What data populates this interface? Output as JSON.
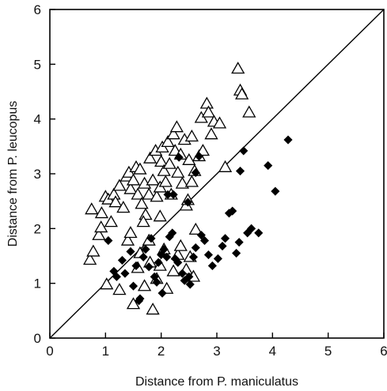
{
  "chart_data": {
    "type": "scatter",
    "title": "",
    "xlabel": "Distance from P. maniculatus",
    "ylabel": "Distance from P. leucopus",
    "xlim": [
      0,
      6
    ],
    "ylim": [
      0,
      6
    ],
    "xticks": [
      "0",
      "1",
      "2",
      "3",
      "4",
      "5",
      "6"
    ],
    "yticks": [
      "0",
      "1",
      "2",
      "3",
      "4",
      "5",
      "6"
    ],
    "grid": false,
    "reference_line": {
      "from": [
        0,
        0
      ],
      "to": [
        6,
        6
      ]
    },
    "series": [
      {
        "marker": "open-triangle",
        "color": "#000000",
        "points": [
          [
            0.72,
            1.43
          ],
          [
            0.78,
            1.58
          ],
          [
            0.75,
            2.35
          ],
          [
            0.88,
            1.88
          ],
          [
            0.92,
            2.02
          ],
          [
            0.93,
            2.28
          ],
          [
            1.0,
            2.58
          ],
          [
            1.05,
            2.53
          ],
          [
            1.1,
            2.12
          ],
          [
            1.15,
            2.62
          ],
          [
            1.25,
            2.78
          ],
          [
            1.18,
            2.48
          ],
          [
            1.32,
            2.38
          ],
          [
            1.38,
            2.95
          ],
          [
            1.42,
            3.02
          ],
          [
            1.45,
            2.72
          ],
          [
            1.5,
            2.88
          ],
          [
            1.55,
            3.12
          ],
          [
            1.62,
            3.08
          ],
          [
            1.58,
            2.62
          ],
          [
            1.65,
            2.45
          ],
          [
            1.7,
            2.82
          ],
          [
            1.72,
            2.25
          ],
          [
            1.78,
            2.62
          ],
          [
            1.8,
            3.28
          ],
          [
            1.85,
            2.88
          ],
          [
            1.9,
            3.42
          ],
          [
            1.92,
            2.58
          ],
          [
            1.98,
            2.75
          ],
          [
            2.0,
            3.22
          ],
          [
            2.02,
            3.48
          ],
          [
            2.05,
            3.05
          ],
          [
            2.08,
            2.85
          ],
          [
            2.12,
            3.58
          ],
          [
            2.15,
            3.18
          ],
          [
            2.18,
            2.62
          ],
          [
            2.22,
            3.72
          ],
          [
            2.25,
            3.42
          ],
          [
            2.28,
            3.85
          ],
          [
            2.3,
            3.02
          ],
          [
            2.35,
            3.35
          ],
          [
            2.38,
            2.82
          ],
          [
            2.42,
            3.62
          ],
          [
            2.45,
            2.42
          ],
          [
            2.5,
            3.25
          ],
          [
            2.55,
            3.68
          ],
          [
            2.6,
            3.05
          ],
          [
            2.68,
            3.32
          ],
          [
            2.72,
            4.02
          ],
          [
            2.75,
            3.42
          ],
          [
            2.82,
            4.28
          ],
          [
            2.85,
            4.12
          ],
          [
            2.9,
            3.72
          ],
          [
            2.95,
            3.95
          ],
          [
            3.05,
            3.92
          ],
          [
            3.15,
            3.12
          ],
          [
            3.38,
            4.92
          ],
          [
            3.42,
            4.52
          ],
          [
            3.45,
            4.45
          ],
          [
            3.58,
            4.12
          ],
          [
            1.02,
            0.98
          ],
          [
            1.25,
            0.88
          ],
          [
            1.4,
            1.78
          ],
          [
            1.45,
            1.92
          ],
          [
            1.5,
            0.62
          ],
          [
            1.58,
            1.28
          ],
          [
            1.62,
            1.55
          ],
          [
            1.7,
            0.95
          ],
          [
            1.78,
            1.78
          ],
          [
            1.8,
            1.38
          ],
          [
            1.85,
            0.52
          ],
          [
            1.92,
            1.08
          ],
          [
            1.98,
            1.32
          ],
          [
            2.05,
            1.62
          ],
          [
            2.1,
            0.9
          ],
          [
            2.22,
            1.22
          ],
          [
            2.3,
            1.52
          ],
          [
            2.35,
            1.68
          ],
          [
            2.45,
            1.25
          ],
          [
            2.52,
            1.48
          ],
          [
            2.58,
            1.12
          ],
          [
            2.62,
            1.98
          ],
          [
            1.68,
            2.12
          ],
          [
            1.98,
            2.22
          ],
          [
            2.48,
            2.52
          ],
          [
            2.55,
            2.85
          ]
        ]
      },
      {
        "marker": "filled-diamond",
        "color": "#000000",
        "points": [
          [
            1.05,
            1.78
          ],
          [
            1.15,
            1.22
          ],
          [
            1.2,
            1.12
          ],
          [
            1.3,
            1.42
          ],
          [
            1.35,
            1.18
          ],
          [
            1.45,
            1.58
          ],
          [
            1.5,
            0.95
          ],
          [
            1.55,
            1.32
          ],
          [
            1.6,
            0.68
          ],
          [
            1.62,
            0.72
          ],
          [
            1.68,
            1.48
          ],
          [
            1.72,
            1.62
          ],
          [
            1.78,
            1.3
          ],
          [
            1.82,
            1.82
          ],
          [
            1.88,
            1.12
          ],
          [
            1.92,
            1.02
          ],
          [
            1.95,
            1.38
          ],
          [
            2.0,
            1.52
          ],
          [
            2.02,
            0.82
          ],
          [
            2.05,
            1.62
          ],
          [
            2.1,
            1.48
          ],
          [
            2.15,
            1.85
          ],
          [
            2.2,
            1.92
          ],
          [
            2.25,
            1.45
          ],
          [
            2.3,
            1.38
          ],
          [
            2.32,
            3.3
          ],
          [
            2.38,
            1.18
          ],
          [
            2.42,
            1.05
          ],
          [
            2.5,
            1.12
          ],
          [
            2.52,
            0.98
          ],
          [
            2.58,
            1.48
          ],
          [
            2.62,
            1.65
          ],
          [
            2.72,
            1.88
          ],
          [
            2.78,
            1.78
          ],
          [
            2.85,
            1.52
          ],
          [
            2.92,
            1.32
          ],
          [
            3.02,
            1.45
          ],
          [
            3.1,
            1.68
          ],
          [
            3.15,
            1.82
          ],
          [
            3.22,
            2.28
          ],
          [
            3.28,
            2.32
          ],
          [
            3.35,
            1.55
          ],
          [
            3.4,
            1.75
          ],
          [
            3.42,
            3.05
          ],
          [
            3.48,
            3.42
          ],
          [
            3.55,
            1.92
          ],
          [
            3.62,
            2.0
          ],
          [
            3.75,
            1.92
          ],
          [
            3.92,
            3.15
          ],
          [
            4.05,
            2.68
          ],
          [
            4.28,
            3.62
          ],
          [
            2.22,
            2.62
          ],
          [
            2.48,
            2.48
          ],
          [
            2.62,
            3.02
          ],
          [
            2.68,
            3.32
          ],
          [
            2.12,
            2.62
          ]
        ]
      }
    ]
  }
}
